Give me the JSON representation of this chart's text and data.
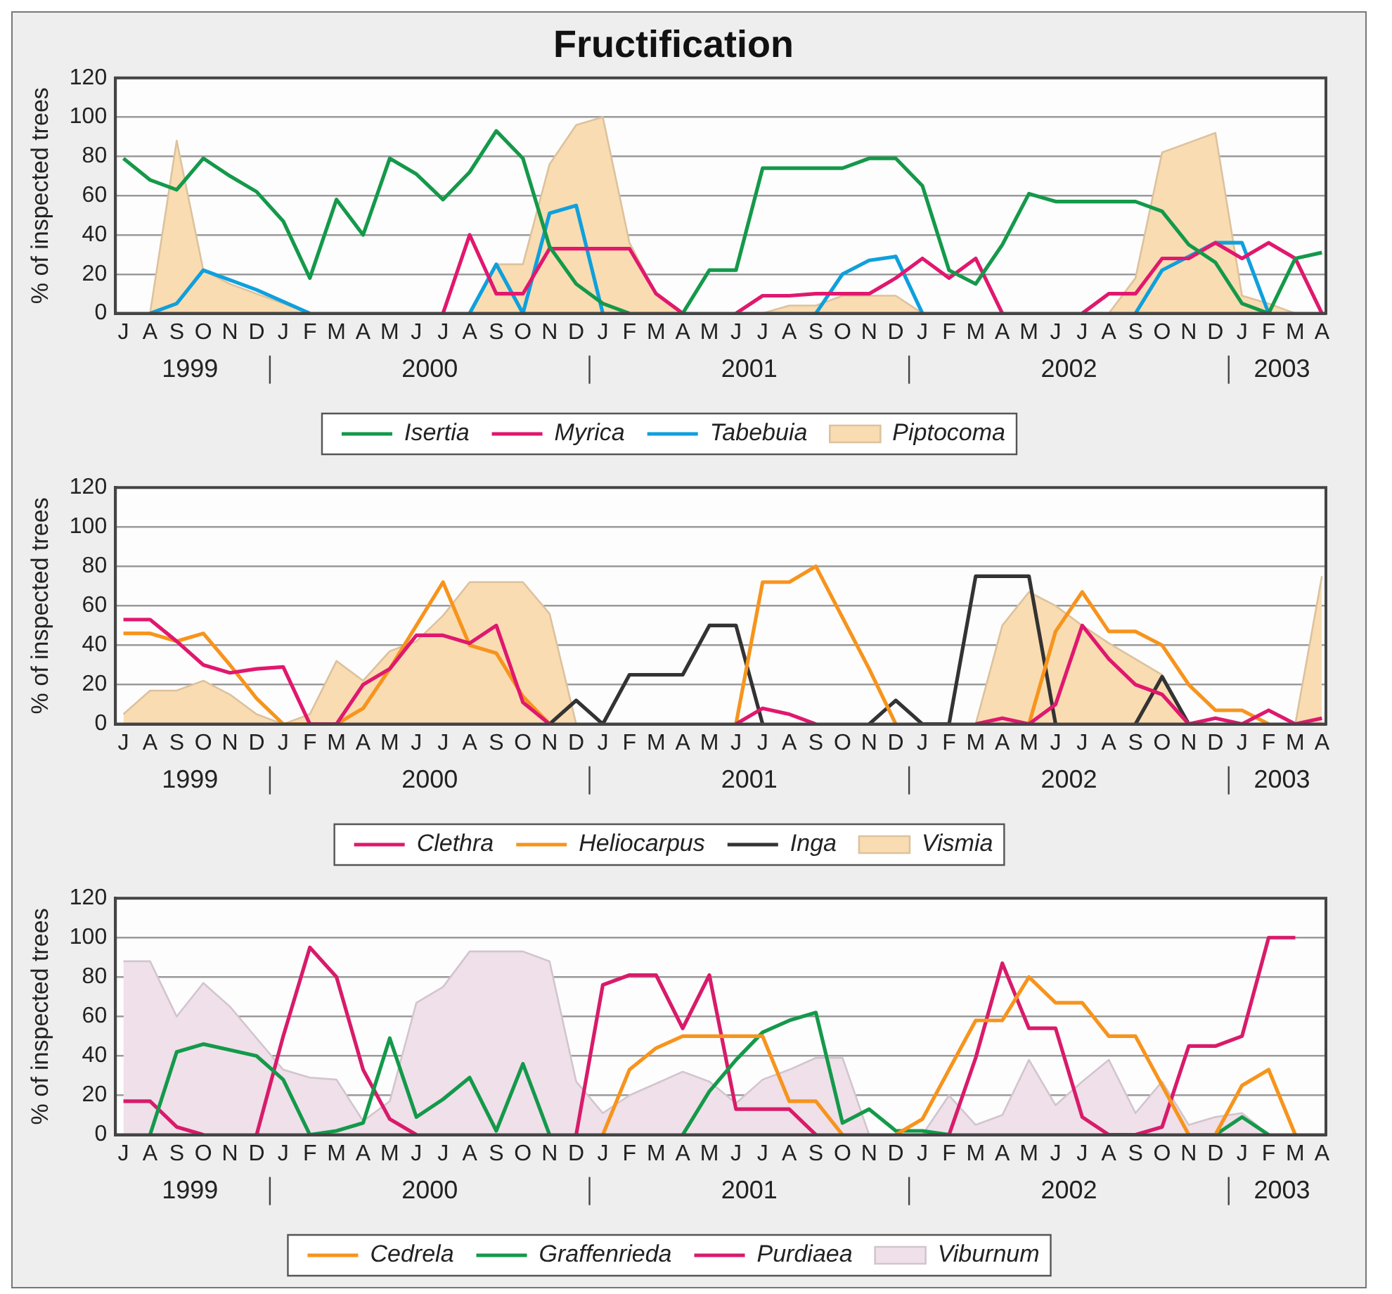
{
  "chart_data": [
    {
      "type": "line",
      "title": "Fructification",
      "ylabel": "% of inspected trees",
      "categories": [
        "J",
        "A",
        "S",
        "O",
        "N",
        "D",
        "J",
        "F",
        "M",
        "A",
        "M",
        "J",
        "J",
        "A",
        "S",
        "O",
        "N",
        "D",
        "J",
        "F",
        "M",
        "A",
        "M",
        "J",
        "J",
        "A",
        "S",
        "O",
        "N",
        "D",
        "J",
        "F",
        "M",
        "A",
        "M",
        "J",
        "J",
        "A",
        "S",
        "O",
        "N",
        "D",
        "J",
        "F",
        "M",
        "A"
      ],
      "ylim": [
        0,
        120
      ],
      "yticks": [
        0,
        20,
        40,
        60,
        80,
        100,
        120
      ],
      "grid": "y",
      "legend": "bottom",
      "annotations": [
        "1999",
        "2000",
        "2001",
        "2002",
        "2003"
      ],
      "series": [
        {
          "name": "Isertia",
          "color": "#14994a",
          "values": [
            79,
            68,
            63,
            79,
            70,
            62,
            47,
            18,
            58,
            40,
            79,
            71,
            58,
            72,
            93,
            79,
            34,
            15,
            5,
            0,
            null,
            0,
            22,
            22,
            74,
            74,
            74,
            74,
            79,
            79,
            65,
            22,
            15,
            35,
            61,
            57,
            57,
            57,
            57,
            52,
            35,
            26,
            5,
            0,
            28,
            31
          ]
        },
        {
          "name": "Myrica",
          "color": "#e0186e",
          "values": [
            null,
            null,
            null,
            null,
            null,
            null,
            null,
            null,
            null,
            null,
            null,
            null,
            0,
            40,
            10,
            10,
            33,
            33,
            33,
            33,
            10,
            0,
            null,
            0,
            9,
            9,
            10,
            10,
            10,
            18,
            28,
            18,
            28,
            0,
            null,
            null,
            0,
            10,
            10,
            28,
            28,
            36,
            28,
            36,
            28,
            0
          ]
        },
        {
          "name": "Piptocoma",
          "type": "area",
          "color": "#fadcb2",
          "values": [
            null,
            0,
            88,
            22,
            15,
            10,
            5,
            0,
            null,
            null,
            null,
            null,
            null,
            0,
            25,
            25,
            76,
            96,
            100,
            36,
            10,
            0,
            null,
            null,
            0,
            4,
            4,
            9,
            9,
            9,
            0,
            null,
            null,
            null,
            null,
            null,
            null,
            0,
            18,
            82,
            87,
            92,
            9,
            5,
            0,
            null
          ]
        },
        {
          "name": "Tabebuia",
          "color": "#0fa0dc",
          "values": [
            null,
            0,
            5,
            22,
            17,
            12,
            6,
            0,
            null,
            null,
            null,
            null,
            null,
            0,
            25,
            0,
            51,
            55,
            0,
            null,
            null,
            null,
            null,
            null,
            null,
            null,
            0,
            20,
            27,
            29,
            0,
            null,
            null,
            null,
            null,
            null,
            null,
            null,
            0,
            22,
            29,
            36,
            36,
            0,
            null,
            null
          ]
        }
      ]
    },
    {
      "type": "line",
      "ylabel": "% of inspected trees",
      "categories": [
        "J",
        "A",
        "S",
        "O",
        "N",
        "D",
        "J",
        "F",
        "M",
        "A",
        "M",
        "J",
        "J",
        "A",
        "S",
        "O",
        "N",
        "D",
        "J",
        "F",
        "M",
        "A",
        "M",
        "J",
        "J",
        "A",
        "S",
        "O",
        "N",
        "D",
        "J",
        "F",
        "M",
        "A",
        "M",
        "J",
        "J",
        "A",
        "S",
        "O",
        "N",
        "D",
        "J",
        "F",
        "M",
        "A"
      ],
      "ylim": [
        0,
        120
      ],
      "yticks": [
        0,
        20,
        40,
        60,
        80,
        100,
        120
      ],
      "grid": "y",
      "legend": "bottom",
      "annotations": [
        "1999",
        "2000",
        "2001",
        "2002",
        "2003"
      ],
      "series": [
        {
          "name": "Clethra",
          "color": "#e0186e",
          "values": [
            53,
            53,
            42,
            30,
            26,
            28,
            29,
            0,
            0,
            20,
            28,
            45,
            45,
            41,
            50,
            11,
            0,
            null,
            null,
            null,
            null,
            null,
            null,
            0,
            8,
            5,
            0,
            null,
            null,
            null,
            null,
            null,
            0,
            3,
            0,
            10,
            50,
            33,
            20,
            15,
            0,
            3,
            0,
            7,
            0,
            3
          ]
        },
        {
          "name": "Heliocarpus",
          "color": "#f7941d",
          "values": [
            46,
            46,
            42,
            46,
            30,
            13,
            0,
            0,
            0,
            8,
            28,
            50,
            72,
            40,
            36,
            14,
            0,
            null,
            null,
            null,
            null,
            null,
            null,
            0,
            72,
            72,
            80,
            54,
            28,
            0,
            null,
            null,
            null,
            null,
            0,
            47,
            67,
            47,
            47,
            40,
            20,
            7,
            7,
            0,
            null,
            null
          ]
        },
        {
          "name": "Inga",
          "color": "#333333",
          "values": [
            null,
            null,
            null,
            null,
            null,
            null,
            null,
            null,
            null,
            null,
            null,
            null,
            null,
            null,
            null,
            null,
            0,
            12,
            0,
            25,
            25,
            25,
            50,
            50,
            0,
            null,
            null,
            null,
            0,
            12,
            0,
            0,
            75,
            75,
            75,
            0,
            null,
            null,
            0,
            24,
            0,
            null,
            null,
            null,
            null,
            null
          ]
        },
        {
          "name": "Vismia",
          "type": "area",
          "color": "#fadcb2",
          "values": [
            5,
            17,
            17,
            22,
            15,
            5,
            0,
            5,
            32,
            22,
            37,
            42,
            55,
            72,
            72,
            72,
            56,
            0,
            null,
            null,
            null,
            null,
            null,
            null,
            null,
            null,
            null,
            null,
            null,
            null,
            null,
            null,
            0,
            50,
            67,
            60,
            50,
            41,
            33,
            25,
            0,
            null,
            null,
            null,
            0,
            75
          ]
        }
      ]
    },
    {
      "type": "line",
      "ylabel": "% of inspected trees",
      "categories": [
        "J",
        "A",
        "S",
        "O",
        "N",
        "D",
        "J",
        "F",
        "M",
        "A",
        "M",
        "J",
        "J",
        "A",
        "S",
        "O",
        "N",
        "D",
        "J",
        "F",
        "M",
        "A",
        "M",
        "J",
        "J",
        "A",
        "S",
        "O",
        "N",
        "D",
        "J",
        "F",
        "M",
        "A",
        "M",
        "J",
        "J",
        "A",
        "S",
        "O",
        "N",
        "D",
        "J",
        "F",
        "M",
        "A"
      ],
      "ylim": [
        0,
        120
      ],
      "yticks": [
        0,
        20,
        40,
        60,
        80,
        100,
        120
      ],
      "grid": "y",
      "legend": "bottom",
      "annotations": [
        "1999",
        "2000",
        "2001",
        "2002",
        "2003"
      ],
      "series": [
        {
          "name": "Cedrela",
          "color": "#f7941d",
          "values": [
            null,
            null,
            null,
            null,
            null,
            null,
            null,
            null,
            null,
            null,
            null,
            null,
            null,
            null,
            null,
            null,
            null,
            null,
            0,
            33,
            44,
            50,
            50,
            50,
            50,
            17,
            17,
            0,
            null,
            0,
            8,
            33,
            58,
            58,
            80,
            67,
            67,
            50,
            50,
            25,
            0,
            0,
            25,
            33,
            0,
            null
          ]
        },
        {
          "name": "Graffenrieda",
          "color": "#14994a",
          "values": [
            null,
            0,
            42,
            46,
            43,
            40,
            28,
            0,
            2,
            6,
            49,
            9,
            18,
            29,
            2,
            36,
            0,
            null,
            null,
            null,
            null,
            0,
            22,
            38,
            52,
            58,
            62,
            6,
            13,
            2,
            2,
            0,
            null,
            null,
            null,
            null,
            null,
            null,
            null,
            null,
            null,
            0,
            9,
            0,
            null,
            null
          ]
        },
        {
          "name": "Purdiaea",
          "color": "#d81b6a",
          "values": [
            17,
            17,
            4,
            0,
            null,
            0,
            50,
            95,
            80,
            33,
            8,
            0,
            null,
            null,
            null,
            null,
            null,
            0,
            76,
            81,
            81,
            54,
            81,
            13,
            13,
            13,
            0,
            null,
            null,
            null,
            null,
            0,
            39,
            87,
            54,
            54,
            9,
            0,
            0,
            4,
            45,
            45,
            50,
            100,
            100,
            null
          ]
        },
        {
          "name": "Viburnum",
          "type": "area",
          "color": "#efe0ea",
          "values": [
            88,
            88,
            60,
            77,
            65,
            49,
            33,
            29,
            28,
            7,
            17,
            67,
            75,
            93,
            93,
            93,
            88,
            27,
            11,
            20,
            26,
            32,
            27,
            16,
            28,
            33,
            39,
            39,
            0,
            0,
            0,
            20,
            5,
            10,
            38,
            15,
            27,
            38,
            11,
            27,
            5,
            9,
            11,
            0,
            null,
            null
          ]
        }
      ]
    }
  ]
}
